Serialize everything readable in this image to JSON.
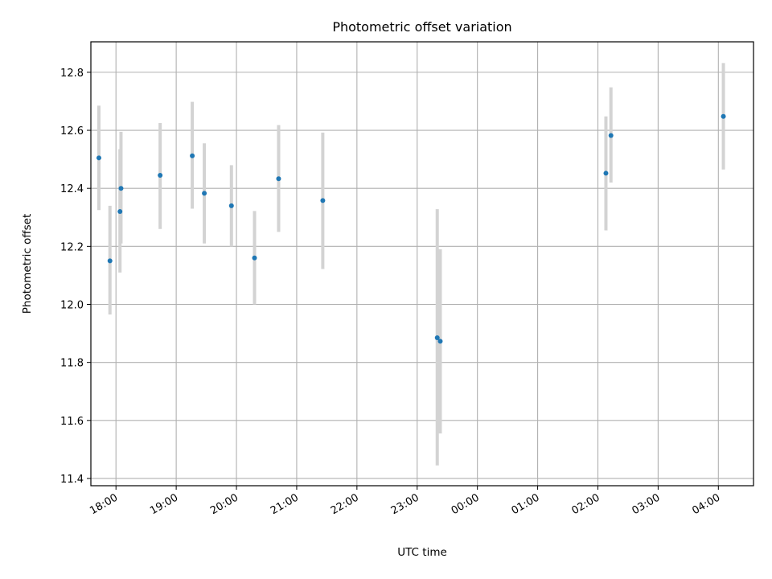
{
  "chart_data": {
    "type": "scatter",
    "title": "Photometric offset variation",
    "xlabel": "UTC time",
    "ylabel": "Photometric offset",
    "grid": true,
    "x_axis_type": "time",
    "x_tick_labels": [
      "18:00",
      "19:00",
      "20:00",
      "21:00",
      "22:00",
      "23:00",
      "00:00",
      "01:00",
      "02:00",
      "03:00",
      "04:00"
    ],
    "x_range": [
      "17:35",
      "04:35"
    ],
    "y_ticks": [
      11.4,
      11.6,
      11.8,
      12.0,
      12.2,
      12.4,
      12.6,
      12.8
    ],
    "y_tick_labels": [
      "11.4",
      "11.6",
      "11.8",
      "12.0",
      "12.2",
      "12.4",
      "12.6",
      "12.8"
    ],
    "ylim": [
      11.375,
      12.905
    ],
    "colors": {
      "points": "#1f77b4",
      "error_bars": "#d3d3d3",
      "grid": "#b0b0b0"
    },
    "series": [
      {
        "points": [
          {
            "x": "17:43",
            "y": 12.505,
            "ylow": 12.325,
            "yhigh": 12.685
          },
          {
            "x": "17:54",
            "y": 12.15,
            "ylow": 11.965,
            "yhigh": 12.34
          },
          {
            "x": "18:04",
            "y": 12.32,
            "ylow": 12.11,
            "yhigh": 12.535
          },
          {
            "x": "18:05",
            "y": 12.4,
            "ylow": 12.21,
            "yhigh": 12.595
          },
          {
            "x": "18:44",
            "y": 12.445,
            "ylow": 12.26,
            "yhigh": 12.625
          },
          {
            "x": "19:16",
            "y": 12.512,
            "ylow": 12.33,
            "yhigh": 12.698
          },
          {
            "x": "19:28",
            "y": 12.383,
            "ylow": 12.21,
            "yhigh": 12.555
          },
          {
            "x": "19:55",
            "y": 12.34,
            "ylow": 12.2,
            "yhigh": 12.48
          },
          {
            "x": "20:18",
            "y": 12.16,
            "ylow": 12.0,
            "yhigh": 12.322
          },
          {
            "x": "20:42",
            "y": 12.433,
            "ylow": 12.25,
            "yhigh": 12.618
          },
          {
            "x": "21:26",
            "y": 12.358,
            "ylow": 12.122,
            "yhigh": 12.592
          },
          {
            "x": "23:20",
            "y": 11.885,
            "ylow": 11.445,
            "yhigh": 12.328
          },
          {
            "x": "23:23",
            "y": 11.873,
            "ylow": 11.555,
            "yhigh": 12.19
          },
          {
            "x": "02:08",
            "y": 12.452,
            "ylow": 12.255,
            "yhigh": 12.648
          },
          {
            "x": "02:13",
            "y": 12.582,
            "ylow": 12.42,
            "yhigh": 12.748
          },
          {
            "x": "04:05",
            "y": 12.648,
            "ylow": 12.465,
            "yhigh": 12.832
          }
        ]
      }
    ]
  }
}
